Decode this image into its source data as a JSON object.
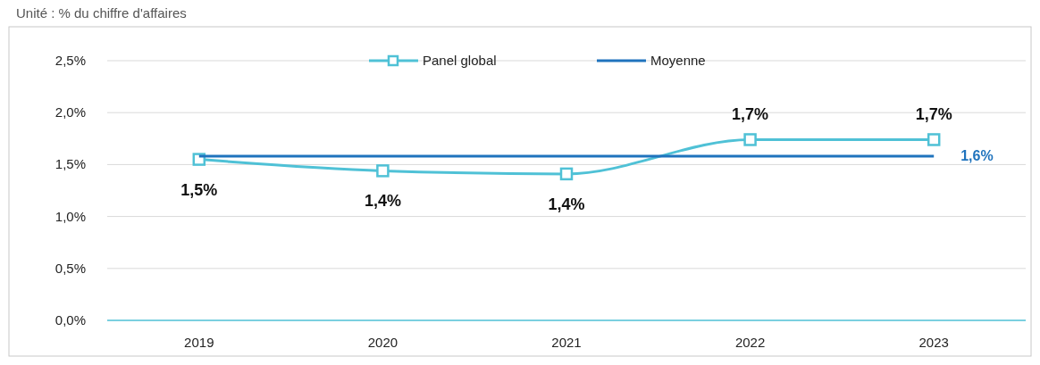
{
  "chart_data": {
    "type": "line",
    "subtitle": "Unité : % du chiffre d'affaires",
    "categories": [
      "2019",
      "2020",
      "2021",
      "2022",
      "2023"
    ],
    "series": [
      {
        "name": "Panel global",
        "color": "#4fc1d6",
        "marker": "square",
        "values": [
          1.55,
          1.44,
          1.41,
          1.74,
          1.74
        ],
        "value_labels": [
          "1,5%",
          "1,4%",
          "1,4%",
          "1,7%",
          "1,7%"
        ]
      },
      {
        "name": "Moyenne",
        "color": "#1f73bd",
        "marker": "none",
        "values": [
          1.58,
          1.58,
          1.58,
          1.58,
          1.58
        ],
        "value_labels": [
          null,
          null,
          null,
          null,
          "1,6%"
        ]
      }
    ],
    "ylim": [
      0,
      2.5
    ],
    "yticks": [
      {
        "value": 0,
        "label": "0,0%"
      },
      {
        "value": 0.5,
        "label": "0,5%"
      },
      {
        "value": 1,
        "label": "1,0%"
      },
      {
        "value": 1.5,
        "label": "1,5%"
      },
      {
        "value": 2,
        "label": "2,0%"
      },
      {
        "value": 2.5,
        "label": "2,5%"
      }
    ],
    "grid": "y",
    "legend": "top"
  }
}
